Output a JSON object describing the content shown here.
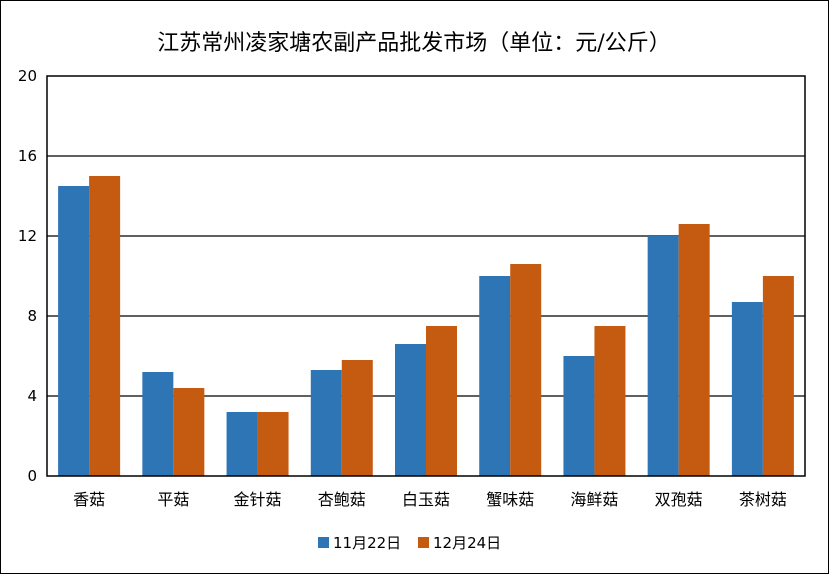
{
  "chart_data": {
    "type": "bar",
    "title": "江苏常州凌家塘农副产品批发市场（单位：元/公斤）",
    "xlabel": "",
    "ylabel": "",
    "ylim": [
      0,
      20
    ],
    "yticks": [
      0,
      4,
      8,
      12,
      16,
      20
    ],
    "grid": true,
    "legend_position": "bottom",
    "categories": [
      "香菇",
      "平菇",
      "金针菇",
      "杏鲍菇",
      "白玉菇",
      "蟹味菇",
      "海鲜菇",
      "双孢菇",
      "茶树菇"
    ],
    "series": [
      {
        "name": "11月22日",
        "color": "#2E75B6",
        "values": [
          14.5,
          5.2,
          3.2,
          5.3,
          6.6,
          10.0,
          6.0,
          12.0,
          8.7
        ]
      },
      {
        "name": "12月24日",
        "color": "#C55A11",
        "values": [
          15.0,
          4.4,
          3.2,
          5.8,
          7.5,
          10.6,
          7.5,
          12.6,
          10.0
        ]
      }
    ]
  }
}
